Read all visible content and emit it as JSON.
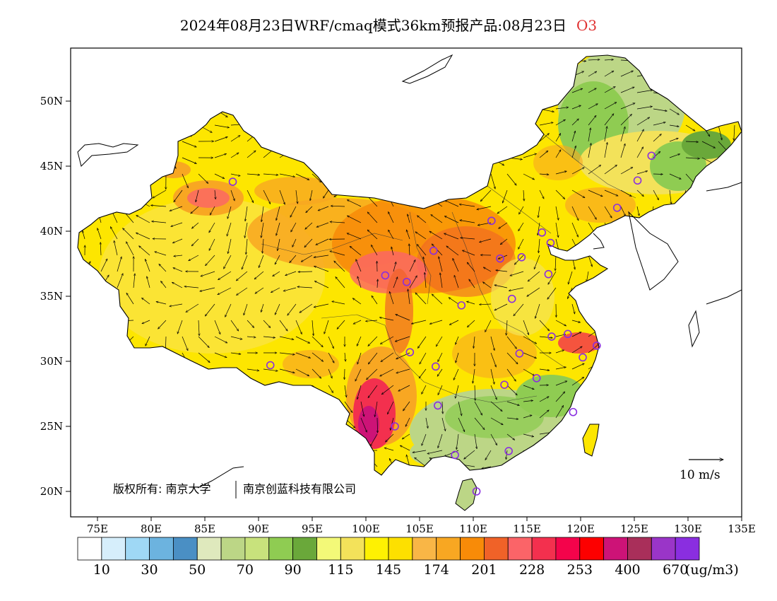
{
  "title": "2024年08月23日WRF/cmaq模式36km预报产品:08月23日",
  "variable": "O3",
  "lat_ticks": [
    "50N",
    "45N",
    "40N",
    "35N",
    "30N",
    "25N",
    "20N"
  ],
  "lon_ticks": [
    "75E",
    "80E",
    "85E",
    "90E",
    "95E",
    "100E",
    "105E",
    "110E",
    "115E",
    "120E",
    "125E",
    "130E",
    "135E"
  ],
  "copyright": "版权所有: 南京大学",
  "copyright2": "南京创蓝科技有限公司",
  "wind_scale_label": "10  m/s",
  "colorbar": {
    "colors": [
      "#ffffff",
      "#d6eefb",
      "#9fd8f5",
      "#6cb3df",
      "#4a8fc4",
      "#dfe9bd",
      "#bcd686",
      "#c8e27c",
      "#8fcc52",
      "#6aa83a",
      "#f3f978",
      "#f3e25a",
      "#fef102",
      "#fde000",
      "#f9b646",
      "#f8a722",
      "#f88b08",
      "#f06228",
      "#fb6468",
      "#f3304e",
      "#f4034b",
      "#fd0000",
      "#cd1377",
      "#a92f5a",
      "#9a35c8",
      "#8a2ee0"
    ],
    "labels": [
      "10",
      "30",
      "50",
      "70",
      "90",
      "115",
      "145",
      "174",
      "201",
      "228",
      "253",
      "400",
      "670"
    ],
    "unit": "(ug/m3)"
  },
  "site_markers": [
    [
      87.6,
      43.8
    ],
    [
      91.1,
      29.7
    ],
    [
      101.8,
      36.6
    ],
    [
      103.8,
      36.1
    ],
    [
      106.3,
      38.5
    ],
    [
      104.1,
      30.7
    ],
    [
      102.7,
      25.0
    ],
    [
      106.7,
      26.6
    ],
    [
      106.5,
      29.6
    ],
    [
      108.9,
      34.3
    ],
    [
      111.7,
      40.8
    ],
    [
      112.5,
      37.9
    ],
    [
      114.5,
      38.0
    ],
    [
      116.4,
      39.9
    ],
    [
      117.2,
      39.1
    ],
    [
      117.0,
      36.7
    ],
    [
      113.6,
      34.8
    ],
    [
      114.3,
      30.6
    ],
    [
      112.9,
      28.2
    ],
    [
      115.9,
      28.7
    ],
    [
      117.3,
      31.9
    ],
    [
      118.8,
      32.1
    ],
    [
      120.2,
      30.3
    ],
    [
      121.5,
      31.2
    ],
    [
      119.3,
      26.1
    ],
    [
      113.3,
      23.1
    ],
    [
      108.3,
      22.8
    ],
    [
      110.3,
      20.0
    ],
    [
      123.4,
      41.8
    ],
    [
      125.3,
      43.9
    ],
    [
      126.6,
      45.8
    ]
  ]
}
